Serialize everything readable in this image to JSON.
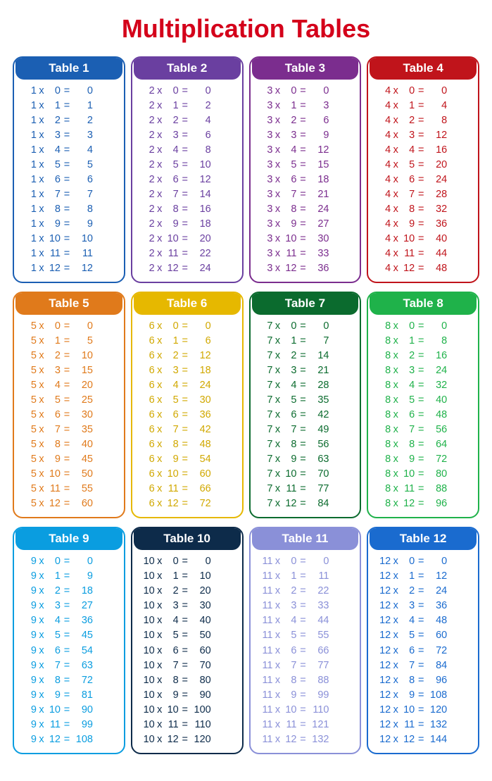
{
  "page": {
    "title": "Multiplication Tables",
    "title_color": "#d4001a",
    "title_fontsize": 36,
    "background": "#ffffff",
    "columns": 4,
    "border_radius": 14
  },
  "tables": [
    {
      "label": "Table 1",
      "n": 1,
      "color": "#1b5fb3",
      "text_color": "#1b5fb3"
    },
    {
      "label": "Table 2",
      "n": 2,
      "color": "#6a3fa0",
      "text_color": "#6a3fa0"
    },
    {
      "label": "Table 3",
      "n": 3,
      "color": "#7b2d8e",
      "text_color": "#7b2d8e"
    },
    {
      "label": "Table 4",
      "n": 4,
      "color": "#c0141b",
      "text_color": "#c0141b"
    },
    {
      "label": "Table 5",
      "n": 5,
      "color": "#e07a1b",
      "text_color": "#e07a1b"
    },
    {
      "label": "Table 6",
      "n": 6,
      "color": "#e6b800",
      "text_color": "#d1a800"
    },
    {
      "label": "Table 7",
      "n": 7,
      "color": "#0b6b2e",
      "text_color": "#0b6b2e"
    },
    {
      "label": "Table 8",
      "n": 8,
      "color": "#1fb24a",
      "text_color": "#1fb24a"
    },
    {
      "label": "Table 9",
      "n": 9,
      "color": "#0a9de0",
      "text_color": "#0a9de0"
    },
    {
      "label": "Table 10",
      "n": 10,
      "color": "#0d2b4a",
      "text_color": "#0d2b4a"
    },
    {
      "label": "Table 11",
      "n": 11,
      "color": "#8a90d8",
      "text_color": "#8a90d8"
    },
    {
      "label": "Table 12",
      "n": 12,
      "color": "#1a6bcf",
      "text_color": "#1a6bcf"
    }
  ],
  "multipliers": [
    0,
    1,
    2,
    3,
    4,
    5,
    6,
    7,
    8,
    9,
    10,
    11,
    12
  ],
  "symbols": {
    "times": "x",
    "equals": "="
  }
}
